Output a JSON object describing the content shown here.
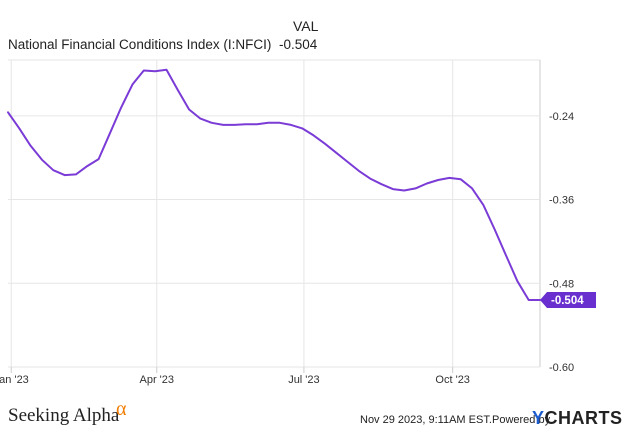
{
  "legend": {
    "column_header": "VAL",
    "series_name": "National Financial Conditions Index (I:NFCI)",
    "series_value": "-0.504"
  },
  "footer": {
    "source_logo": "Seeking Alpha",
    "source_logo_mark": "α",
    "timestamp": "Nov 29 2023, 9:11AM EST.",
    "powered_by": "Powered by",
    "brand_y": "Y",
    "brand_rest": "CHARTS"
  },
  "colors": {
    "line": "#7a3bd6",
    "label_bg": "#6a2fcf",
    "grid": "#e6e6e6",
    "axis": "#cccccc"
  },
  "chart_data": {
    "type": "line",
    "title": "",
    "xlabel": "",
    "ylabel": "",
    "ylim": [
      -0.6,
      -0.16
    ],
    "yticks": [
      -0.24,
      -0.36,
      -0.48,
      -0.6
    ],
    "ytick_labels": [
      "-0.24",
      "-0.36",
      "-0.48",
      "-0.60"
    ],
    "xlim": [
      "2022-12-30",
      "2023-11-24"
    ],
    "xticks": [
      "2023-01-01",
      "2023-04-01",
      "2023-07-01",
      "2023-10-01"
    ],
    "xtick_labels": [
      "Jan '23",
      "Apr '23",
      "Jul '23",
      "Oct '23"
    ],
    "last_value_label": "-0.504",
    "series": [
      {
        "name": "National Financial Conditions Index (I:NFCI)",
        "x": [
          "2022-12-30",
          "2023-01-06",
          "2023-01-13",
          "2023-01-20",
          "2023-01-27",
          "2023-02-03",
          "2023-02-10",
          "2023-02-17",
          "2023-02-24",
          "2023-03-03",
          "2023-03-10",
          "2023-03-17",
          "2023-03-24",
          "2023-03-31",
          "2023-04-07",
          "2023-04-14",
          "2023-04-21",
          "2023-04-28",
          "2023-05-05",
          "2023-05-12",
          "2023-05-19",
          "2023-05-26",
          "2023-06-02",
          "2023-06-09",
          "2023-06-16",
          "2023-06-23",
          "2023-06-30",
          "2023-07-07",
          "2023-07-14",
          "2023-07-21",
          "2023-07-28",
          "2023-08-04",
          "2023-08-11",
          "2023-08-18",
          "2023-08-25",
          "2023-09-01",
          "2023-09-08",
          "2023-09-15",
          "2023-09-22",
          "2023-09-29",
          "2023-10-06",
          "2023-10-13",
          "2023-10-20",
          "2023-10-27",
          "2023-11-03",
          "2023-11-10",
          "2023-11-17",
          "2023-11-24"
        ],
        "values": [
          -0.235,
          -0.258,
          -0.283,
          -0.303,
          -0.318,
          -0.325,
          -0.324,
          -0.312,
          -0.302,
          -0.265,
          -0.228,
          -0.195,
          -0.175,
          -0.176,
          -0.174,
          -0.203,
          -0.231,
          -0.244,
          -0.25,
          -0.253,
          -0.253,
          -0.252,
          -0.252,
          -0.25,
          -0.25,
          -0.253,
          -0.258,
          -0.268,
          -0.28,
          -0.293,
          -0.306,
          -0.319,
          -0.33,
          -0.338,
          -0.345,
          -0.347,
          -0.344,
          -0.337,
          -0.332,
          -0.329,
          -0.331,
          -0.344,
          -0.368,
          -0.403,
          -0.44,
          -0.477,
          -0.504,
          -0.504
        ]
      }
    ]
  }
}
